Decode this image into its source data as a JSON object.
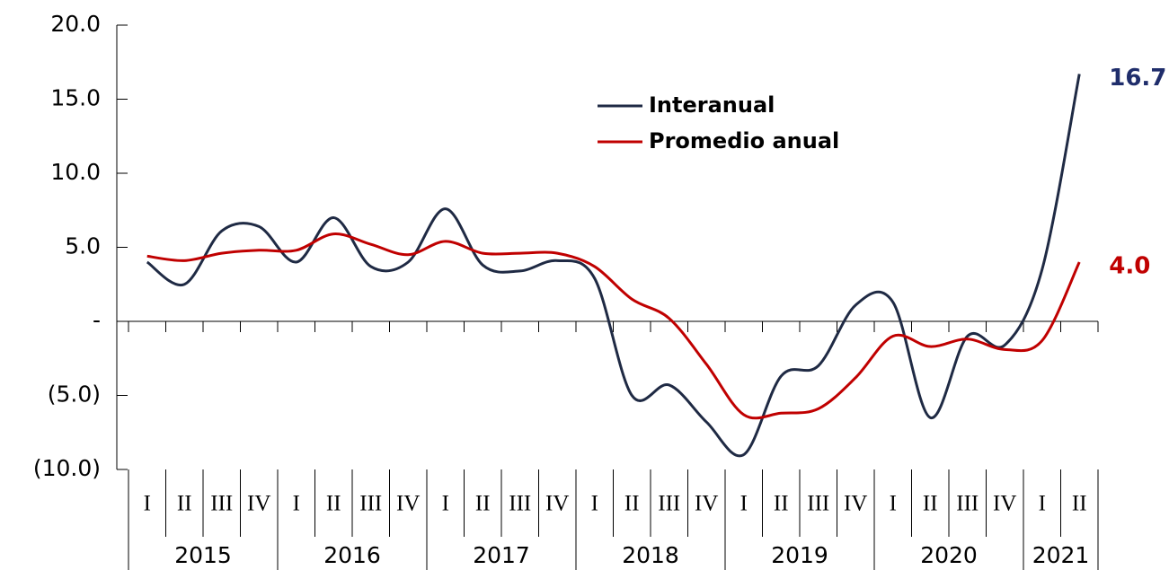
{
  "chart_data": {
    "type": "line",
    "groups": [
      {
        "label": "2015",
        "categories": [
          "I",
          "II",
          "III",
          "IV"
        ]
      },
      {
        "label": "2016",
        "categories": [
          "I",
          "II",
          "III",
          "IV"
        ]
      },
      {
        "label": "2017",
        "categories": [
          "I",
          "II",
          "III",
          "IV"
        ]
      },
      {
        "label": "2018",
        "categories": [
          "I",
          "II",
          "III",
          "IV"
        ]
      },
      {
        "label": "2019",
        "categories": [
          "I",
          "II",
          "III",
          "IV"
        ]
      },
      {
        "label": "2020",
        "categories": [
          "I",
          "II",
          "III",
          "IV"
        ]
      },
      {
        "label": "2021",
        "categories": [
          "I",
          "II"
        ]
      }
    ],
    "series": [
      {
        "name": "Interanual",
        "color": "#1f2a44",
        "end_label_color": "#1f2d6b",
        "end_label": "16.7",
        "values": [
          4.0,
          2.5,
          6.1,
          6.4,
          4.0,
          7.0,
          3.7,
          4.0,
          7.6,
          3.8,
          3.4,
          4.1,
          2.9,
          -5.0,
          -4.3,
          -6.8,
          -9.0,
          -3.7,
          -3.0,
          1.1,
          1.3,
          -6.5,
          -1.0,
          -1.6,
          3.5,
          16.7
        ]
      },
      {
        "name": "Promedio anual",
        "color": "#c00000",
        "end_label_color": "#c00000",
        "end_label": "4.0",
        "values": [
          4.4,
          4.1,
          4.6,
          4.8,
          4.8,
          5.9,
          5.2,
          4.5,
          5.4,
          4.6,
          4.6,
          4.6,
          3.7,
          1.5,
          0.2,
          -2.9,
          -6.3,
          -6.2,
          -5.9,
          -3.8,
          -1.0,
          -1.7,
          -1.2,
          -1.9,
          -1.3,
          4.0
        ]
      }
    ],
    "ylim": [
      -10,
      20
    ],
    "yticks": [
      {
        "value": 20,
        "label": "20.0"
      },
      {
        "value": 15,
        "label": "15.0"
      },
      {
        "value": 10,
        "label": "10.0"
      },
      {
        "value": 5,
        "label": "5.0"
      },
      {
        "value": 0,
        "label": "-"
      },
      {
        "value": -5,
        "label": "(5.0)"
      },
      {
        "value": -10,
        "label": "(10.0)"
      }
    ],
    "grid": false,
    "legend": "top-right"
  }
}
